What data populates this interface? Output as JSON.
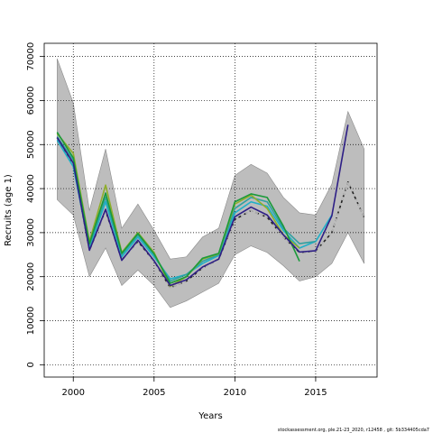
{
  "chart_data": {
    "type": "line",
    "xlabel": "Years",
    "ylabel": "Recruits (age 1)",
    "footer": "stockassessment.org, ple.21-23_2020, r12458 , git: 5b334405cda7",
    "xlim": [
      1998.2,
      2018.8
    ],
    "ylim": [
      -2800,
      73000
    ],
    "xticks": [
      2000,
      2005,
      2010,
      2015
    ],
    "yticks": [
      0,
      10000,
      20000,
      30000,
      40000,
      50000,
      60000,
      70000
    ],
    "grid": "dotted",
    "band": {
      "x": [
        1999,
        2000,
        2001,
        2002,
        2003,
        2004,
        2005,
        2006,
        2007,
        2008,
        2009,
        2010,
        2011,
        2012,
        2013,
        2014,
        2015,
        2016,
        2017,
        2018
      ],
      "upper": [
        69500,
        59500,
        35000,
        49000,
        31000,
        36500,
        30500,
        24000,
        24500,
        29000,
        31000,
        43000,
        45500,
        43500,
        38000,
        34500,
        34000,
        41000,
        57500,
        49000
      ],
      "lower": [
        37500,
        34000,
        20000,
        26500,
        18000,
        21500,
        18000,
        13000,
        14500,
        16500,
        18500,
        25000,
        27000,
        25500,
        22500,
        19000,
        20000,
        23000,
        30000,
        23000
      ]
    },
    "series": [
      {
        "color": "#222222",
        "dash": "4,3",
        "x": [
          1999,
          2000,
          2001,
          2002,
          2003,
          2004,
          2005,
          2006,
          2007,
          2008,
          2009,
          2010,
          2011,
          2012,
          2013,
          2014,
          2015,
          2016,
          2017,
          2018
        ],
        "y": [
          51500,
          45500,
          26000,
          35000,
          23800,
          28000,
          23500,
          17500,
          19000,
          22000,
          24000,
          33000,
          35000,
          33500,
          29000,
          25500,
          25800,
          30000,
          41500,
          33500
        ]
      },
      {
        "color": "#b5b5b5",
        "dash": "3,3",
        "x": [
          1999,
          2000,
          2001,
          2002,
          2003,
          2004,
          2005,
          2006,
          2007,
          2008,
          2009,
          2010,
          2011,
          2012,
          2013,
          2014,
          2015,
          2016,
          2017,
          2018
        ],
        "y": [
          51500,
          45500,
          26000,
          35000,
          23800,
          28000,
          23500,
          17500,
          19000,
          22000,
          24000,
          33000,
          35000,
          33500,
          29000,
          25500,
          25800,
          30000,
          41500,
          33500
        ]
      },
      {
        "color": "#1fb0c8",
        "dash": "",
        "x": [
          1999,
          2000,
          2001,
          2002,
          2003,
          2004,
          2005,
          2006,
          2007,
          2008,
          2009,
          2010,
          2011,
          2012,
          2013,
          2014,
          2015,
          2016
        ],
        "y": [
          51000,
          45000,
          26500,
          37000,
          24500,
          29000,
          24500,
          19500,
          20500,
          23000,
          24800,
          34500,
          37000,
          36000,
          30500,
          26500,
          28000,
          34000
        ]
      },
      {
        "color": "#30a0a0",
        "dash": "",
        "x": [
          1999,
          2000,
          2001,
          2002,
          2003,
          2004,
          2005,
          2006,
          2007,
          2008,
          2009,
          2010,
          2011,
          2012,
          2013,
          2014,
          2015
        ],
        "y": [
          51800,
          46500,
          27000,
          38000,
          25000,
          29500,
          25000,
          19000,
          20500,
          23500,
          25000,
          35500,
          38000,
          37000,
          31000,
          27500,
          28000
        ]
      },
      {
        "color": "#8fae2a",
        "dash": "",
        "x": [
          1999,
          2000,
          2001,
          2002,
          2003,
          2004,
          2005,
          2006,
          2007,
          2008,
          2009,
          2010,
          2011,
          2012,
          2013,
          2014
        ],
        "y": [
          52500,
          48000,
          28000,
          40800,
          25500,
          30000,
          25500,
          17800,
          20000,
          24000,
          25200,
          36500,
          38500,
          35500,
          29500,
          26500
        ]
      },
      {
        "color": "#1a9a3a",
        "dash": "",
        "x": [
          1999,
          2000,
          2001,
          2002,
          2003,
          2004,
          2005,
          2006,
          2007,
          2008,
          2009,
          2010,
          2011,
          2012,
          2013,
          2014
        ],
        "y": [
          52800,
          47000,
          27500,
          39000,
          25300,
          29800,
          25200,
          18500,
          20000,
          24200,
          25300,
          37000,
          38800,
          38000,
          31500,
          23500
        ]
      },
      {
        "color": "#2e1f86",
        "dash": "",
        "x": [
          1999,
          2000,
          2001,
          2002,
          2003,
          2004,
          2005,
          2006,
          2007,
          2008,
          2009,
          2010,
          2011,
          2012,
          2013,
          2014,
          2015,
          2016,
          2017
        ],
        "y": [
          51600,
          45800,
          26000,
          35300,
          23700,
          28300,
          23600,
          18000,
          19300,
          22200,
          24000,
          33600,
          35800,
          34000,
          29500,
          25600,
          25900,
          33800,
          54500
        ]
      }
    ]
  }
}
